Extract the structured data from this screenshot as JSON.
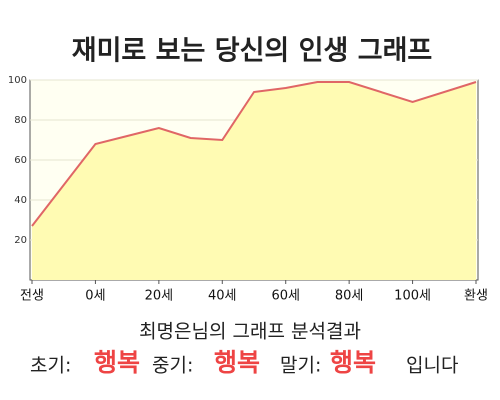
{
  "chart_data": {
    "type": "area",
    "title": "재미로 보는 당신의 인생 그래프",
    "x": [
      -20,
      0,
      20,
      30,
      40,
      50,
      60,
      70,
      80,
      100,
      120
    ],
    "values": [
      27,
      68,
      76,
      71,
      70,
      94,
      96,
      99,
      99,
      89,
      99
    ],
    "color": "#e06666",
    "fill": "#fffbb3",
    "xlim": [
      -20,
      120
    ],
    "xticks": [
      {
        "value": -20,
        "label": "전생"
      },
      {
        "value": 0,
        "label": "0세"
      },
      {
        "value": 20,
        "label": "20세"
      },
      {
        "value": 40,
        "label": "40세"
      },
      {
        "value": 60,
        "label": "60세"
      },
      {
        "value": 80,
        "label": "80세"
      },
      {
        "value": 100,
        "label": "100세"
      },
      {
        "value": 120,
        "label": "환생"
      }
    ],
    "ylim": [
      0,
      100
    ],
    "yticks": [
      20,
      40,
      60,
      80,
      100
    ],
    "grid": true
  },
  "result": {
    "heading": "최명은님의 그래프 분석결과",
    "items": [
      {
        "label": "초기:",
        "value": "행복"
      },
      {
        "label": "중기:",
        "value": "행복"
      },
      {
        "label": "말기:",
        "value": "행복"
      }
    ],
    "ending": "입니다"
  }
}
